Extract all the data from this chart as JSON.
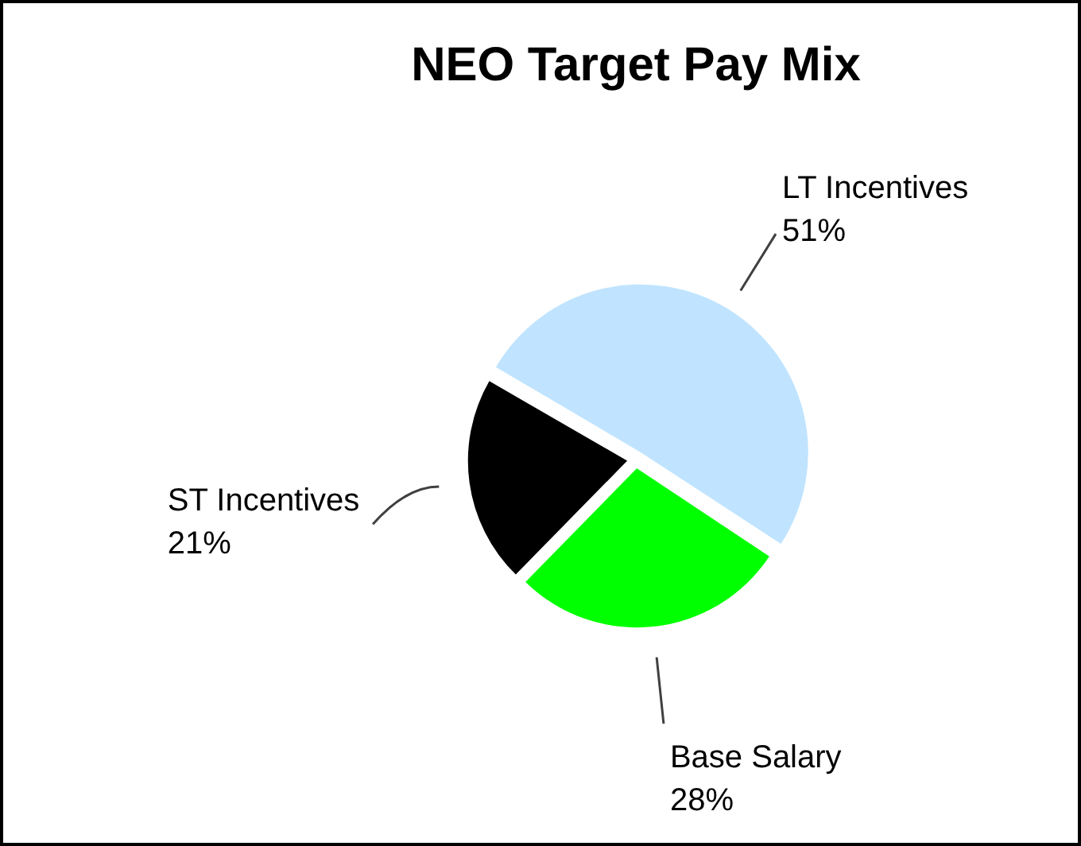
{
  "chart_data": {
    "type": "pie",
    "title": "NEO Target Pay Mix",
    "categories": [
      "LT Incentives",
      "Base Salary",
      "ST Incentives"
    ],
    "values": [
      51,
      28,
      21
    ],
    "value_labels": [
      "51%",
      "28%",
      "21%"
    ],
    "colors": [
      "#c0e4ff",
      "#00ff00",
      "#000000"
    ],
    "legend": false
  }
}
